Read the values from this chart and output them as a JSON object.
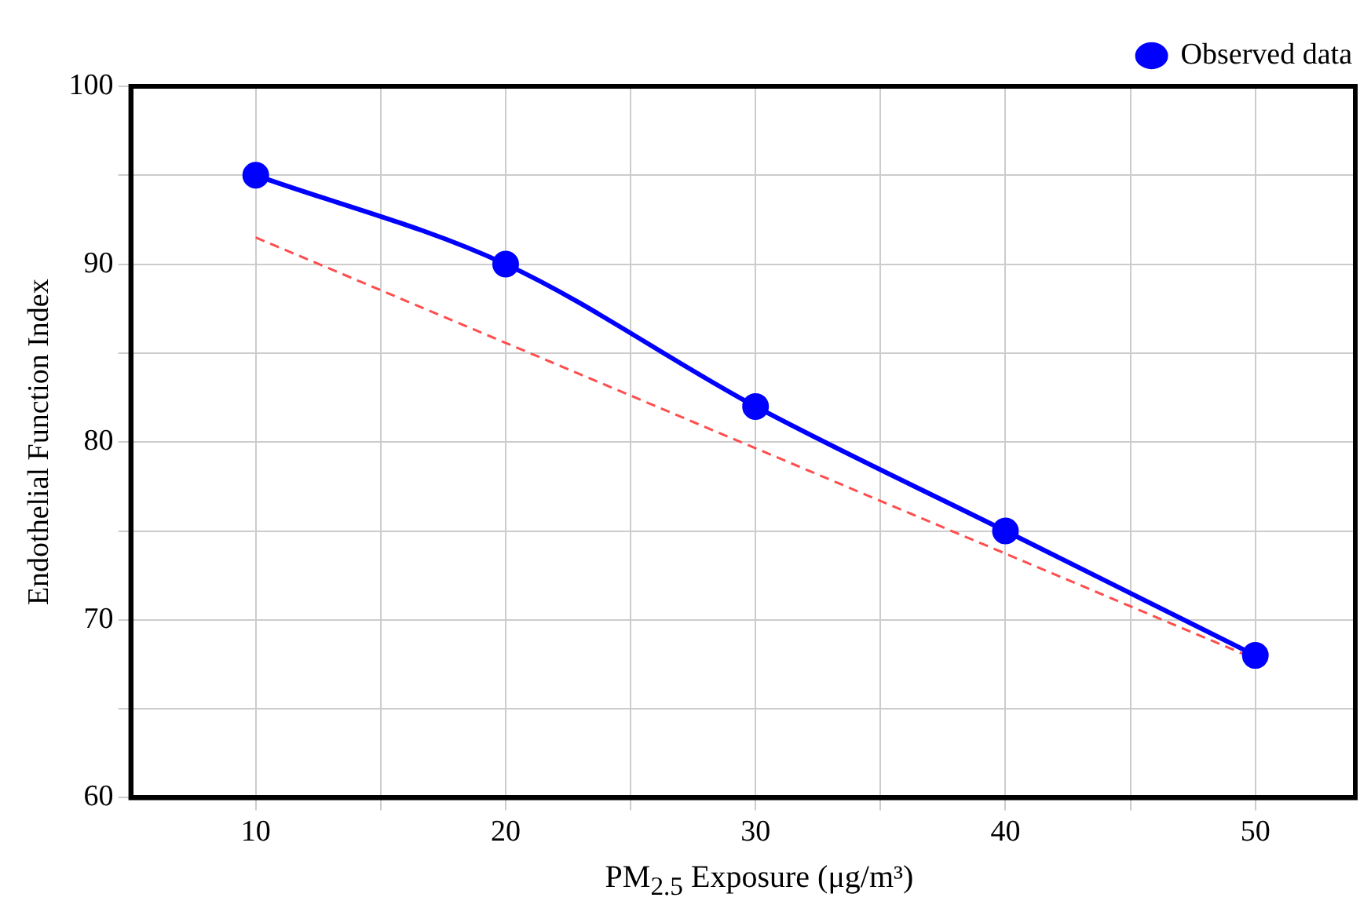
{
  "chart_data": {
    "type": "line",
    "xlabel": "PM$_{2.5}$ Exposure (μg/m³)",
    "ylabel": "Endothelial Function Index",
    "xlim": [
      5,
      54
    ],
    "ylim": [
      60,
      100
    ],
    "xticks": [
      10,
      {
        "value": 15,
        "label": null
      },
      20,
      {
        "value": 25,
        "label": null
      },
      30,
      {
        "value": 35,
        "label": null
      },
      40,
      {
        "value": 45,
        "label": null
      },
      50
    ],
    "yticks": [
      60,
      {
        "value": 65,
        "label": null
      },
      70,
      {
        "value": 75,
        "label": null
      },
      80,
      {
        "value": 85,
        "label": null
      },
      90,
      {
        "value": 95,
        "label": null
      },
      100
    ],
    "grid": true,
    "legend": "top right",
    "series": [
      {
        "name": "Observed data",
        "color": "#0000ff",
        "x": [
          10,
          20,
          30,
          40,
          50
        ],
        "values": [
          95,
          90,
          82,
          75,
          68
        ],
        "marker": "circle",
        "line_style": "solid"
      },
      {
        "type": "line",
        "color": "#ff4d4d",
        "x": [
          10,
          50
        ],
        "values": [
          91.5,
          67.8
        ],
        "marker": "none",
        "line_style": "dashed"
      }
    ]
  }
}
